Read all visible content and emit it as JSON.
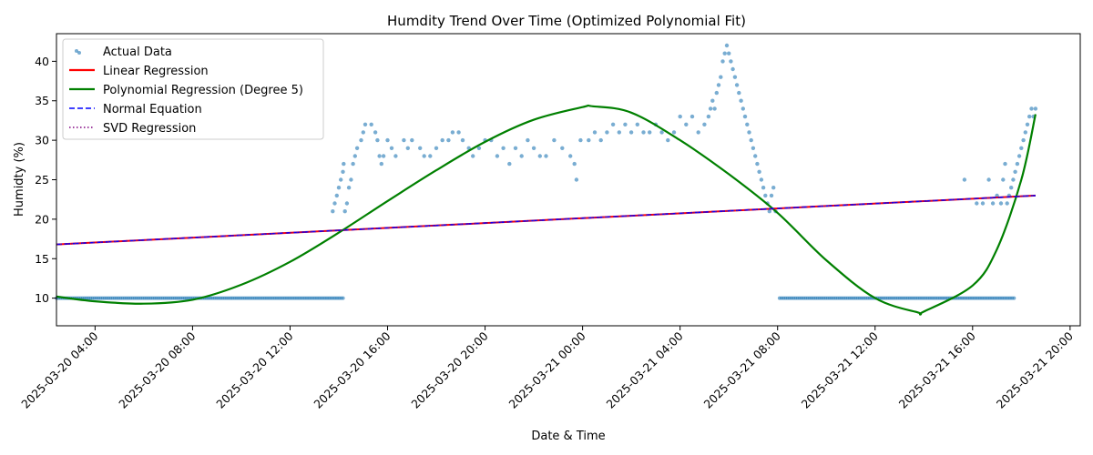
{
  "chart_data": {
    "type": "scatter",
    "title": "Humdity Trend Over Time (Optimized Polynomial Fit)",
    "xlabel": "Date & Time",
    "ylabel": "Humidty (%)",
    "xlim": [
      "2025-03-20 02:25",
      "2025-03-21 20:25"
    ],
    "ylim": [
      6.5,
      43.5
    ],
    "x_ticks": [
      "2025-03-20 04:00",
      "2025-03-20 08:00",
      "2025-03-20 12:00",
      "2025-03-20 16:00",
      "2025-03-20 20:00",
      "2025-03-21 00:00",
      "2025-03-21 04:00",
      "2025-03-21 08:00",
      "2025-03-21 12:00",
      "2025-03-21 16:00",
      "2025-03-21 20:00"
    ],
    "y_ticks": [
      10,
      15,
      20,
      25,
      30,
      35,
      40
    ],
    "grid": false,
    "legend_position": "top-left",
    "colors": {
      "actual": "#1f77b4",
      "linear": "#ff0000",
      "polynomial": "#008000",
      "normal_eq": "#0000ff",
      "svd": "#800080"
    },
    "series": [
      {
        "name": "Actual Data",
        "kind": "scatter",
        "segments": [
          {
            "from": "2025-03-20 02:25",
            "to": "2025-03-20 14:15",
            "value": 10
          },
          {
            "from": "2025-03-21 08:05",
            "to": "2025-03-21 17:45",
            "value": 10
          }
        ],
        "points": [
          [
            "2025-03-20 13:45",
            21
          ],
          [
            "2025-03-20 13:50",
            22
          ],
          [
            "2025-03-20 13:55",
            23
          ],
          [
            "2025-03-20 14:00",
            24
          ],
          [
            "2025-03-20 14:05",
            25
          ],
          [
            "2025-03-20 14:10",
            26
          ],
          [
            "2025-03-20 14:12",
            27
          ],
          [
            "2025-03-20 14:15",
            21
          ],
          [
            "2025-03-20 14:20",
            22
          ],
          [
            "2025-03-20 14:25",
            24
          ],
          [
            "2025-03-20 14:30",
            25
          ],
          [
            "2025-03-20 14:35",
            27
          ],
          [
            "2025-03-20 14:40",
            28
          ],
          [
            "2025-03-20 14:45",
            29
          ],
          [
            "2025-03-20 14:55",
            30
          ],
          [
            "2025-03-20 15:00",
            31
          ],
          [
            "2025-03-20 15:05",
            32
          ],
          [
            "2025-03-20 15:20",
            32
          ],
          [
            "2025-03-20 15:30",
            31
          ],
          [
            "2025-03-20 15:35",
            30
          ],
          [
            "2025-03-20 15:40",
            28
          ],
          [
            "2025-03-20 15:45",
            27
          ],
          [
            "2025-03-20 15:50",
            28
          ],
          [
            "2025-03-20 16:00",
            30
          ],
          [
            "2025-03-20 16:10",
            29
          ],
          [
            "2025-03-20 16:20",
            28
          ],
          [
            "2025-03-20 16:40",
            30
          ],
          [
            "2025-03-20 16:50",
            29
          ],
          [
            "2025-03-20 17:00",
            30
          ],
          [
            "2025-03-20 17:20",
            29
          ],
          [
            "2025-03-20 17:30",
            28
          ],
          [
            "2025-03-20 17:45",
            28
          ],
          [
            "2025-03-20 18:00",
            29
          ],
          [
            "2025-03-20 18:15",
            30
          ],
          [
            "2025-03-20 18:30",
            30
          ],
          [
            "2025-03-20 18:40",
            31
          ],
          [
            "2025-03-20 18:55",
            31
          ],
          [
            "2025-03-20 19:05",
            30
          ],
          [
            "2025-03-20 19:20",
            29
          ],
          [
            "2025-03-20 19:30",
            28
          ],
          [
            "2025-03-20 19:45",
            29
          ],
          [
            "2025-03-20 20:00",
            30
          ],
          [
            "2025-03-20 20:15",
            30
          ],
          [
            "2025-03-20 20:30",
            28
          ],
          [
            "2025-03-20 20:45",
            29
          ],
          [
            "2025-03-20 21:00",
            27
          ],
          [
            "2025-03-20 21:15",
            29
          ],
          [
            "2025-03-20 21:30",
            28
          ],
          [
            "2025-03-20 21:45",
            30
          ],
          [
            "2025-03-20 22:00",
            29
          ],
          [
            "2025-03-20 22:15",
            28
          ],
          [
            "2025-03-20 22:30",
            28
          ],
          [
            "2025-03-20 22:50",
            30
          ],
          [
            "2025-03-20 23:10",
            29
          ],
          [
            "2025-03-20 23:30",
            28
          ],
          [
            "2025-03-20 23:40",
            27
          ],
          [
            "2025-03-20 23:45",
            25
          ],
          [
            "2025-03-20 23:55",
            30
          ],
          [
            "2025-03-21 00:15",
            30
          ],
          [
            "2025-03-21 00:30",
            31
          ],
          [
            "2025-03-21 00:45",
            30
          ],
          [
            "2025-03-21 01:00",
            31
          ],
          [
            "2025-03-21 01:15",
            32
          ],
          [
            "2025-03-21 01:30",
            31
          ],
          [
            "2025-03-21 01:45",
            32
          ],
          [
            "2025-03-21 02:00",
            31
          ],
          [
            "2025-03-21 02:15",
            32
          ],
          [
            "2025-03-21 02:30",
            31
          ],
          [
            "2025-03-21 02:45",
            31
          ],
          [
            "2025-03-21 03:00",
            32
          ],
          [
            "2025-03-21 03:15",
            31
          ],
          [
            "2025-03-21 03:30",
            30
          ],
          [
            "2025-03-21 03:45",
            31
          ],
          [
            "2025-03-21 04:00",
            33
          ],
          [
            "2025-03-21 04:15",
            32
          ],
          [
            "2025-03-21 04:30",
            33
          ],
          [
            "2025-03-21 04:45",
            31
          ],
          [
            "2025-03-21 05:00",
            32
          ],
          [
            "2025-03-21 05:10",
            33
          ],
          [
            "2025-03-21 05:15",
            34
          ],
          [
            "2025-03-21 05:20",
            35
          ],
          [
            "2025-03-21 05:25",
            34
          ],
          [
            "2025-03-21 05:30",
            36
          ],
          [
            "2025-03-21 05:35",
            37
          ],
          [
            "2025-03-21 05:40",
            38
          ],
          [
            "2025-03-21 05:45",
            40
          ],
          [
            "2025-03-21 05:50",
            41
          ],
          [
            "2025-03-21 05:55",
            42
          ],
          [
            "2025-03-21 06:00",
            41
          ],
          [
            "2025-03-21 06:05",
            40
          ],
          [
            "2025-03-21 06:10",
            39
          ],
          [
            "2025-03-21 06:15",
            38
          ],
          [
            "2025-03-21 06:20",
            37
          ],
          [
            "2025-03-21 06:25",
            36
          ],
          [
            "2025-03-21 06:30",
            35
          ],
          [
            "2025-03-21 06:35",
            34
          ],
          [
            "2025-03-21 06:40",
            33
          ],
          [
            "2025-03-21 06:45",
            32
          ],
          [
            "2025-03-21 06:50",
            31
          ],
          [
            "2025-03-21 06:55",
            30
          ],
          [
            "2025-03-21 07:00",
            29
          ],
          [
            "2025-03-21 07:05",
            28
          ],
          [
            "2025-03-21 07:10",
            27
          ],
          [
            "2025-03-21 07:15",
            26
          ],
          [
            "2025-03-21 07:20",
            25
          ],
          [
            "2025-03-21 07:25",
            24
          ],
          [
            "2025-03-21 07:30",
            23
          ],
          [
            "2025-03-21 07:35",
            22
          ],
          [
            "2025-03-21 07:40",
            21
          ],
          [
            "2025-03-21 07:45",
            23
          ],
          [
            "2025-03-21 07:50",
            24
          ],
          [
            "2025-03-21 07:55",
            21
          ],
          [
            "2025-03-21 15:40",
            25
          ],
          [
            "2025-03-21 16:10",
            22
          ],
          [
            "2025-03-21 16:25",
            22
          ],
          [
            "2025-03-21 16:40",
            25
          ],
          [
            "2025-03-21 16:50",
            22
          ],
          [
            "2025-03-21 17:00",
            23
          ],
          [
            "2025-03-21 17:10",
            22
          ],
          [
            "2025-03-21 17:15",
            25
          ],
          [
            "2025-03-21 17:20",
            27
          ],
          [
            "2025-03-21 17:25",
            22
          ],
          [
            "2025-03-21 17:30",
            23
          ],
          [
            "2025-03-21 17:35",
            24
          ],
          [
            "2025-03-21 17:40",
            25
          ],
          [
            "2025-03-21 17:45",
            26
          ],
          [
            "2025-03-21 17:50",
            27
          ],
          [
            "2025-03-21 17:55",
            28
          ],
          [
            "2025-03-21 18:00",
            29
          ],
          [
            "2025-03-21 18:05",
            30
          ],
          [
            "2025-03-21 18:10",
            31
          ],
          [
            "2025-03-21 18:15",
            32
          ],
          [
            "2025-03-21 18:20",
            33
          ],
          [
            "2025-03-21 18:25",
            34
          ],
          [
            "2025-03-21 18:30",
            33
          ],
          [
            "2025-03-21 18:35",
            34
          ]
        ]
      },
      {
        "name": "Linear Regression",
        "kind": "line",
        "style": "solid",
        "x": [
          "2025-03-20 02:25",
          "2025-03-21 18:35"
        ],
        "y": [
          16.8,
          23.0
        ]
      },
      {
        "name": "Polynomial Regression (Degree 5)",
        "kind": "line",
        "style": "solid",
        "x": [
          "2025-03-20 02:25",
          "2025-03-20 04:00",
          "2025-03-20 06:00",
          "2025-03-20 08:00",
          "2025-03-20 10:00",
          "2025-03-20 12:00",
          "2025-03-20 14:00",
          "2025-03-20 16:00",
          "2025-03-20 18:00",
          "2025-03-20 20:00",
          "2025-03-20 22:00",
          "2025-03-21 00:00",
          "2025-03-21 00:25",
          "2025-03-21 02:00",
          "2025-03-21 04:00",
          "2025-03-21 06:00",
          "2025-03-21 08:00",
          "2025-03-21 10:00",
          "2025-03-21 12:00",
          "2025-03-21 13:45",
          "2025-03-21 14:00",
          "2025-03-21 16:00",
          "2025-03-21 17:00",
          "2025-03-21 18:00",
          "2025-03-21 18:35"
        ],
        "y": [
          10.2,
          9.6,
          9.3,
          9.8,
          11.7,
          14.6,
          18.3,
          22.3,
          26.2,
          29.8,
          32.6,
          34.2,
          34.3,
          33.5,
          30.0,
          25.7,
          20.8,
          14.8,
          10.0,
          8.2,
          8.3,
          11.6,
          16.2,
          25.0,
          33.3
        ]
      },
      {
        "name": "Normal Equation",
        "kind": "line",
        "style": "dashed",
        "x": [
          "2025-03-20 02:25",
          "2025-03-21 18:35"
        ],
        "y": [
          16.8,
          23.0
        ]
      },
      {
        "name": "SVD Regression",
        "kind": "line",
        "style": "dotted",
        "x": [
          "2025-03-20 02:25",
          "2025-03-21 18:35"
        ],
        "y": [
          16.8,
          23.0
        ]
      }
    ]
  }
}
